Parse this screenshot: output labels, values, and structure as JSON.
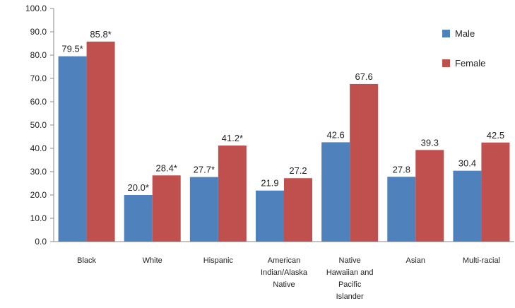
{
  "chart_data": {
    "type": "bar",
    "categories": [
      [
        "Black"
      ],
      [
        "White"
      ],
      [
        "Hispanic"
      ],
      [
        "American",
        "Indian/Alaska",
        "Native"
      ],
      [
        "Native",
        "Hawaiian and",
        "Pacific",
        "Islander"
      ],
      [
        "Asian"
      ],
      [
        "Multi-racial"
      ]
    ],
    "series": [
      {
        "name": "Male",
        "color": "#4f81bd",
        "values": [
          79.5,
          20.0,
          27.7,
          21.9,
          42.6,
          27.8,
          30.4
        ],
        "labels": [
          "79.5*",
          "20.0*",
          "27.7*",
          "21.9",
          "42.6",
          "27.8",
          "30.4"
        ]
      },
      {
        "name": "Female",
        "color": "#c0504d",
        "values": [
          85.8,
          28.4,
          41.2,
          27.2,
          67.6,
          39.3,
          42.5
        ],
        "labels": [
          "85.8*",
          "28.4*",
          "41.2*",
          "27.2",
          "67.6",
          "39.3",
          "42.5"
        ]
      }
    ],
    "yticks": [
      "0.0",
      "10.0",
      "20.0",
      "30.0",
      "40.0",
      "50.0",
      "60.0",
      "70.0",
      "80.0",
      "90.0",
      "100.0"
    ],
    "ylim": [
      0,
      100
    ],
    "grid": false,
    "legend_position": "right"
  }
}
